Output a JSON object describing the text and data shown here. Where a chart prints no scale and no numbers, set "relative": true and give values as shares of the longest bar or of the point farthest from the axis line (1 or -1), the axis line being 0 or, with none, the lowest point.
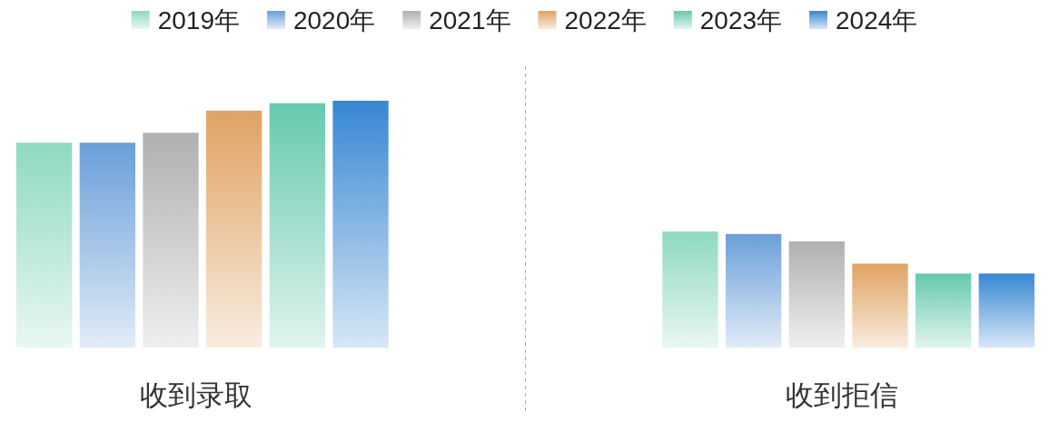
{
  "chart_data": {
    "type": "bar",
    "relative": true,
    "categories": [
      "收到录取",
      "收到拒信"
    ],
    "series": [
      {
        "name": "2019年",
        "color": "#8fd9c1",
        "values": [
          0.83,
          0.47
        ]
      },
      {
        "name": "2020年",
        "color": "#6a9fd9",
        "values": [
          0.83,
          0.46
        ]
      },
      {
        "name": "2021年",
        "color": "#b0b0b0",
        "values": [
          0.87,
          0.43
        ]
      },
      {
        "name": "2022年",
        "color": "#e0a262",
        "values": [
          0.96,
          0.34
        ]
      },
      {
        "name": "2023年",
        "color": "#66c9ae",
        "values": [
          0.99,
          0.3
        ]
      },
      {
        "name": "2024年",
        "color": "#3787d3",
        "values": [
          1,
          0.3
        ]
      }
    ],
    "legend": "top"
  }
}
